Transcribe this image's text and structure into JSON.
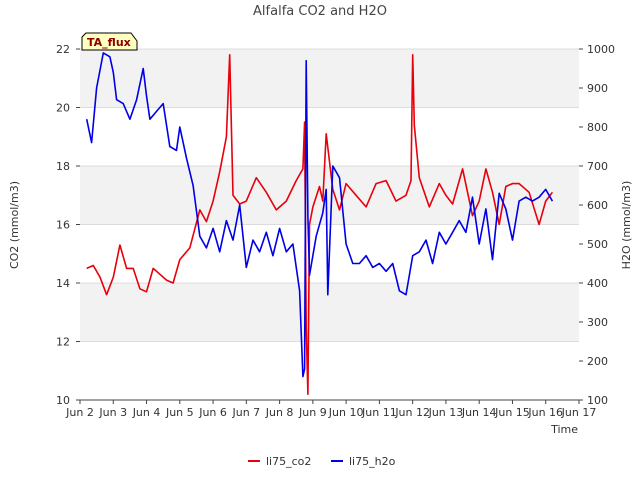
{
  "chart_data": {
    "type": "line",
    "title": "Alfalfa CO2 and H2O",
    "badge": "TA_flux",
    "xlabel": "Time",
    "ylabel_left": "CO2 (mmol/m3)",
    "ylabel_right": "H2O (mmol/m3)",
    "xlim": [
      2,
      17
    ],
    "ylim_left": [
      10,
      22
    ],
    "ylim_right": [
      100,
      1000
    ],
    "x_ticks": [
      {
        "v": 2,
        "label": "Jun 2"
      },
      {
        "v": 3,
        "label": "Jun 3"
      },
      {
        "v": 4,
        "label": "Jun 4"
      },
      {
        "v": 5,
        "label": "Jun 5"
      },
      {
        "v": 6,
        "label": "Jun 6"
      },
      {
        "v": 7,
        "label": "Jun 7"
      },
      {
        "v": 8,
        "label": "Jun 8"
      },
      {
        "v": 9,
        "label": "Jun 9"
      },
      {
        "v": 10,
        "label": "Jun 10"
      },
      {
        "v": 11,
        "label": "Jun 11"
      },
      {
        "v": 12,
        "label": "Jun 12"
      },
      {
        "v": 13,
        "label": "Jun 13"
      },
      {
        "v": 14,
        "label": "Jun 14"
      },
      {
        "v": 15,
        "label": "Jun 15"
      },
      {
        "v": 16,
        "label": "Jun 16"
      },
      {
        "v": 17,
        "label": "Jun 17"
      }
    ],
    "y_ticks_left": [
      10,
      12,
      14,
      16,
      18,
      20,
      22
    ],
    "y_ticks_right": [
      100,
      200,
      300,
      400,
      500,
      600,
      700,
      800,
      900,
      1000
    ],
    "grid": true,
    "legend_position": "bottom-center",
    "series": [
      {
        "name": "li75_co2",
        "axis": "left",
        "color": "#e8000b",
        "x": [
          2.2,
          2.4,
          2.6,
          2.8,
          3.0,
          3.2,
          3.4,
          3.6,
          3.8,
          4.0,
          4.2,
          4.4,
          4.6,
          4.8,
          5.0,
          5.3,
          5.6,
          5.8,
          6.0,
          6.2,
          6.4,
          6.5,
          6.6,
          6.8,
          7.0,
          7.3,
          7.6,
          7.9,
          8.2,
          8.5,
          8.7,
          8.75,
          8.8,
          8.85,
          8.9,
          9.0,
          9.2,
          9.3,
          9.4,
          9.6,
          9.8,
          10.0,
          10.3,
          10.6,
          10.9,
          11.2,
          11.5,
          11.8,
          11.95,
          12.0,
          12.05,
          12.2,
          12.5,
          12.8,
          13.0,
          13.2,
          13.5,
          13.8,
          14.0,
          14.2,
          14.4,
          14.6,
          14.8,
          15.0,
          15.2,
          15.5,
          15.8,
          16.0,
          16.2
        ],
        "y": [
          14.5,
          14.6,
          14.2,
          13.6,
          14.2,
          15.3,
          14.5,
          14.5,
          13.8,
          13.7,
          14.5,
          14.3,
          14.1,
          14.0,
          14.8,
          15.2,
          16.5,
          16.1,
          16.8,
          17.8,
          19.0,
          21.8,
          17.0,
          16.7,
          16.8,
          17.6,
          17.1,
          16.5,
          16.8,
          17.5,
          17.9,
          19.5,
          12.5,
          10.2,
          16.0,
          16.6,
          17.3,
          16.8,
          19.1,
          17.2,
          16.5,
          17.4,
          17.0,
          16.6,
          17.4,
          17.5,
          16.8,
          17.0,
          17.5,
          21.8,
          19.4,
          17.6,
          16.6,
          17.4,
          17.0,
          16.7,
          17.9,
          16.3,
          16.8,
          17.9,
          17.1,
          16.0,
          17.3,
          17.4,
          17.4,
          17.1,
          16.0,
          16.8,
          17.1
        ]
      },
      {
        "name": "li75_h2o",
        "axis": "right",
        "color": "#0000e6",
        "x": [
          2.2,
          2.35,
          2.5,
          2.7,
          2.9,
          3.0,
          3.1,
          3.3,
          3.5,
          3.7,
          3.9,
          4.0,
          4.1,
          4.3,
          4.5,
          4.7,
          4.9,
          5.0,
          5.2,
          5.4,
          5.6,
          5.8,
          6.0,
          6.2,
          6.4,
          6.6,
          6.8,
          7.0,
          7.2,
          7.4,
          7.6,
          7.8,
          8.0,
          8.2,
          8.4,
          8.6,
          8.7,
          8.75,
          8.8,
          8.85,
          8.9,
          9.1,
          9.3,
          9.4,
          9.45,
          9.6,
          9.8,
          10.0,
          10.2,
          10.4,
          10.6,
          10.8,
          11.0,
          11.2,
          11.4,
          11.6,
          11.8,
          12.0,
          12.2,
          12.4,
          12.6,
          12.8,
          13.0,
          13.2,
          13.4,
          13.6,
          13.8,
          14.0,
          14.2,
          14.4,
          14.6,
          14.8,
          15.0,
          15.2,
          15.4,
          15.6,
          15.8,
          16.0,
          16.2
        ],
        "y": [
          820,
          760,
          900,
          990,
          980,
          940,
          870,
          860,
          820,
          870,
          950,
          880,
          820,
          840,
          860,
          750,
          740,
          800,
          720,
          650,
          520,
          490,
          540,
          480,
          560,
          510,
          600,
          440,
          510,
          480,
          530,
          470,
          540,
          480,
          500,
          380,
          160,
          180,
          970,
          570,
          420,
          520,
          580,
          640,
          370,
          700,
          670,
          500,
          450,
          450,
          470,
          440,
          450,
          430,
          450,
          380,
          370,
          470,
          480,
          510,
          450,
          530,
          500,
          530,
          560,
          530,
          620,
          500,
          590,
          460,
          630,
          590,
          510,
          610,
          620,
          610,
          620,
          640,
          610
        ]
      }
    ]
  }
}
